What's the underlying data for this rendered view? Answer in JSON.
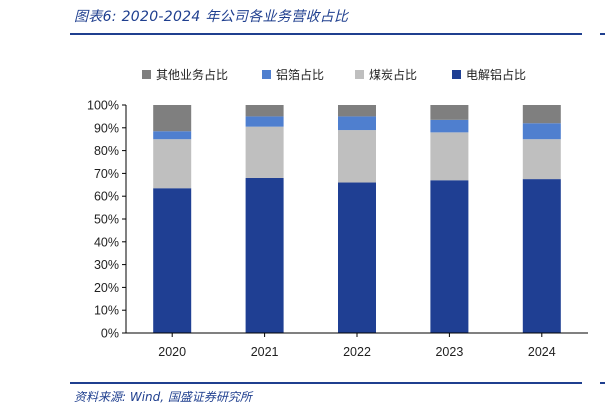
{
  "figure": {
    "title": "图表6:  2020-2024 年公司各业务营收占比",
    "source": "资料来源:  Wind, 国盛证券研究所"
  },
  "chart_data": {
    "type": "bar",
    "stacked": true,
    "categories": [
      "2020",
      "2021",
      "2022",
      "2023",
      "2024"
    ],
    "series": [
      {
        "name": "电解铝占比",
        "color": "#1f3f93",
        "values": [
          63.5,
          68,
          66,
          67,
          67.5
        ]
      },
      {
        "name": "煤炭占比",
        "color": "#bfbfbf",
        "values": [
          21.5,
          22.5,
          23,
          21,
          17.5
        ]
      },
      {
        "name": "铝箔占比",
        "color": "#4f7fcf",
        "values": [
          3.5,
          4.5,
          6,
          5.5,
          7
        ]
      },
      {
        "name": "其他业务占比",
        "color": "#7f7f7f",
        "values": [
          11.5,
          5,
          5,
          6.5,
          8
        ]
      }
    ],
    "legend_order": [
      3,
      2,
      1,
      0
    ],
    "ylim": [
      0,
      100
    ],
    "yticks": [
      "0%",
      "10%",
      "20%",
      "30%",
      "40%",
      "50%",
      "60%",
      "70%",
      "80%",
      "90%",
      "100%"
    ],
    "legend_position": "top",
    "grid": false
  }
}
